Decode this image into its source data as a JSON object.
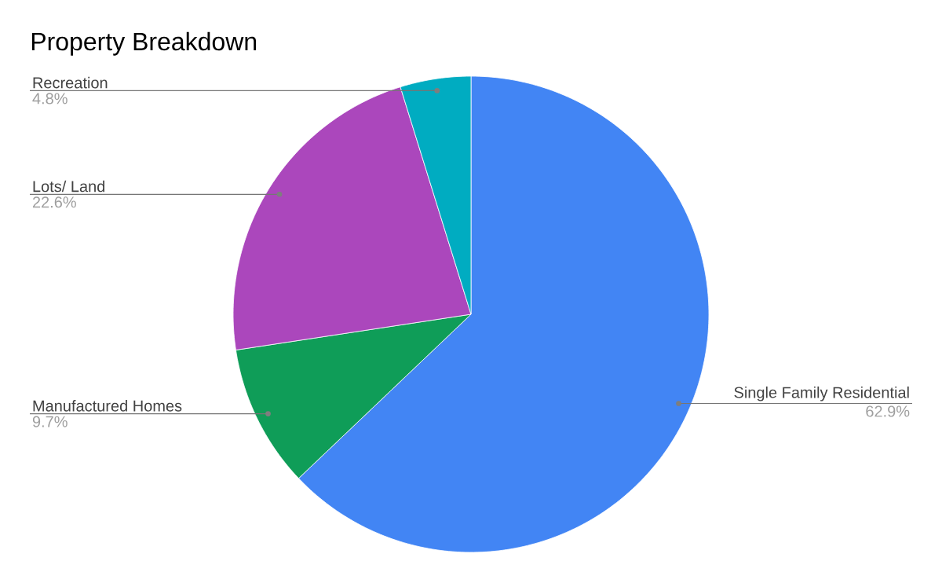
{
  "chart_data": {
    "type": "pie",
    "title": "Property Breakdown",
    "categories": [
      "Single Family Residential",
      "Manufactured Homes",
      "Lots/ Land",
      "Recreation"
    ],
    "values": [
      62.9,
      9.7,
      22.6,
      4.8
    ],
    "colors": [
      "#4285f4",
      "#0f9d58",
      "#ab47bc",
      "#00acc1"
    ],
    "value_labels": [
      "62.9%",
      "9.7%",
      "22.6%",
      "4.8%"
    ]
  }
}
